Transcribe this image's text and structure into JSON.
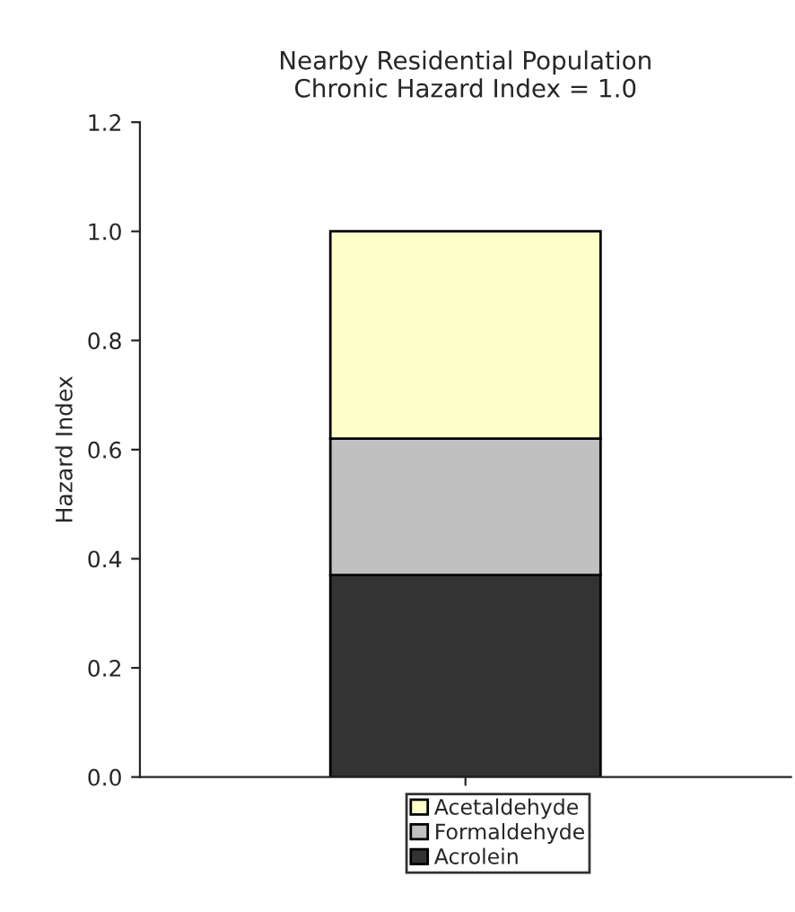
{
  "chart_data": {
    "type": "bar",
    "title": "Nearby Residential Population\nChronic Hazard Index = 1.0",
    "ylabel": "Hazard Index",
    "categories": [
      null
    ],
    "stacked": true,
    "series": [
      {
        "name": "Acrolein",
        "color": "#333333",
        "values": [
          0.37
        ]
      },
      {
        "name": "Formaldehyde",
        "color": "#c0c0c0",
        "values": [
          0.25
        ]
      },
      {
        "name": "Acetaldehyde",
        "color": "#ffffcc",
        "values": [
          0.38
        ]
      }
    ],
    "ylim": [
      0,
      1.2
    ],
    "yticks": [
      {
        "value": 0,
        "label": "0.0"
      },
      {
        "value": 0.2,
        "label": "0.2"
      },
      {
        "value": 0.4,
        "label": "0.4"
      },
      {
        "value": 0.6,
        "label": "0.6"
      },
      {
        "value": 0.8,
        "label": "0.8"
      },
      {
        "value": 1.0,
        "label": "1.0"
      },
      {
        "value": 1.2,
        "label": "1.2"
      }
    ],
    "grid": false,
    "legend": "bottom"
  }
}
